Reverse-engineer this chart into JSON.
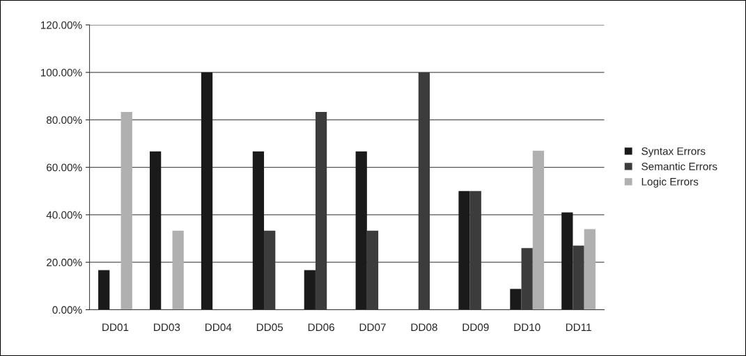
{
  "chart_data": {
    "type": "bar",
    "categories": [
      "DD01",
      "DD03",
      "DD04",
      "DD05",
      "DD06",
      "DD07",
      "DD08",
      "DD09",
      "DD10",
      "DD11"
    ],
    "series": [
      {
        "name": "Syntax Errors",
        "color": "#1a1a1a",
        "values": [
          16.7,
          66.7,
          100,
          66.7,
          16.7,
          66.7,
          null,
          50,
          8.8,
          41
        ]
      },
      {
        "name": "Semantic Errors",
        "color": "#3c3c3c",
        "values": [
          null,
          null,
          null,
          33.3,
          83.3,
          33.3,
          100,
          50,
          26,
          27
        ]
      },
      {
        "name": "Logic Errors",
        "color": "#b0b0b0",
        "values": [
          83.3,
          33.3,
          null,
          null,
          null,
          null,
          null,
          null,
          67,
          34
        ]
      }
    ],
    "ylim": [
      0,
      120
    ],
    "yticks": [
      {
        "value": 0,
        "label": "0.00%"
      },
      {
        "value": 20,
        "label": "20.00%"
      },
      {
        "value": 40,
        "label": "40.00%"
      },
      {
        "value": 60,
        "label": "60.00%"
      },
      {
        "value": 80,
        "label": "80.00%"
      },
      {
        "value": 100,
        "label": "100.00%"
      },
      {
        "value": 120,
        "label": "120.00%"
      }
    ],
    "grid": "y",
    "legend": "right"
  }
}
